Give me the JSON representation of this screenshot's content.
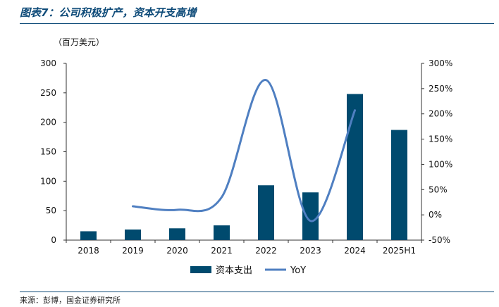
{
  "header": {
    "title": "图表7：公司积极扩产，资本开支高增"
  },
  "footer": {
    "source": "来源：彭博，国金证券研究所"
  },
  "colors": {
    "bar": "#004a6e",
    "line": "#4f7fc1",
    "rule": "#0d4a78"
  },
  "chart_data": {
    "type": "bar",
    "unit_label": "（百万美元）",
    "categories": [
      "2018",
      "2019",
      "2020",
      "2021",
      "2022",
      "2023",
      "2024",
      "2025H1"
    ],
    "series": [
      {
        "name": "资本支出",
        "type": "bar",
        "axis": "left",
        "values": [
          15,
          18,
          20,
          25,
          93,
          81,
          248,
          187
        ]
      },
      {
        "name": "YoY",
        "type": "line",
        "axis": "right",
        "smooth": true,
        "values": [
          null,
          17,
          10,
          35,
          267,
          -12,
          207,
          null
        ]
      }
    ],
    "y_left": {
      "lim": [
        0,
        300
      ],
      "ticks": [
        "0",
        "50",
        "100",
        "150",
        "200",
        "250",
        "300"
      ]
    },
    "y_right": {
      "lim": [
        -50,
        300
      ],
      "ticks": [
        "-50%",
        "0%",
        "50%",
        "100%",
        "150%",
        "200%",
        "250%",
        "300%"
      ]
    },
    "grid": false,
    "legend_position": "bottom-center"
  }
}
